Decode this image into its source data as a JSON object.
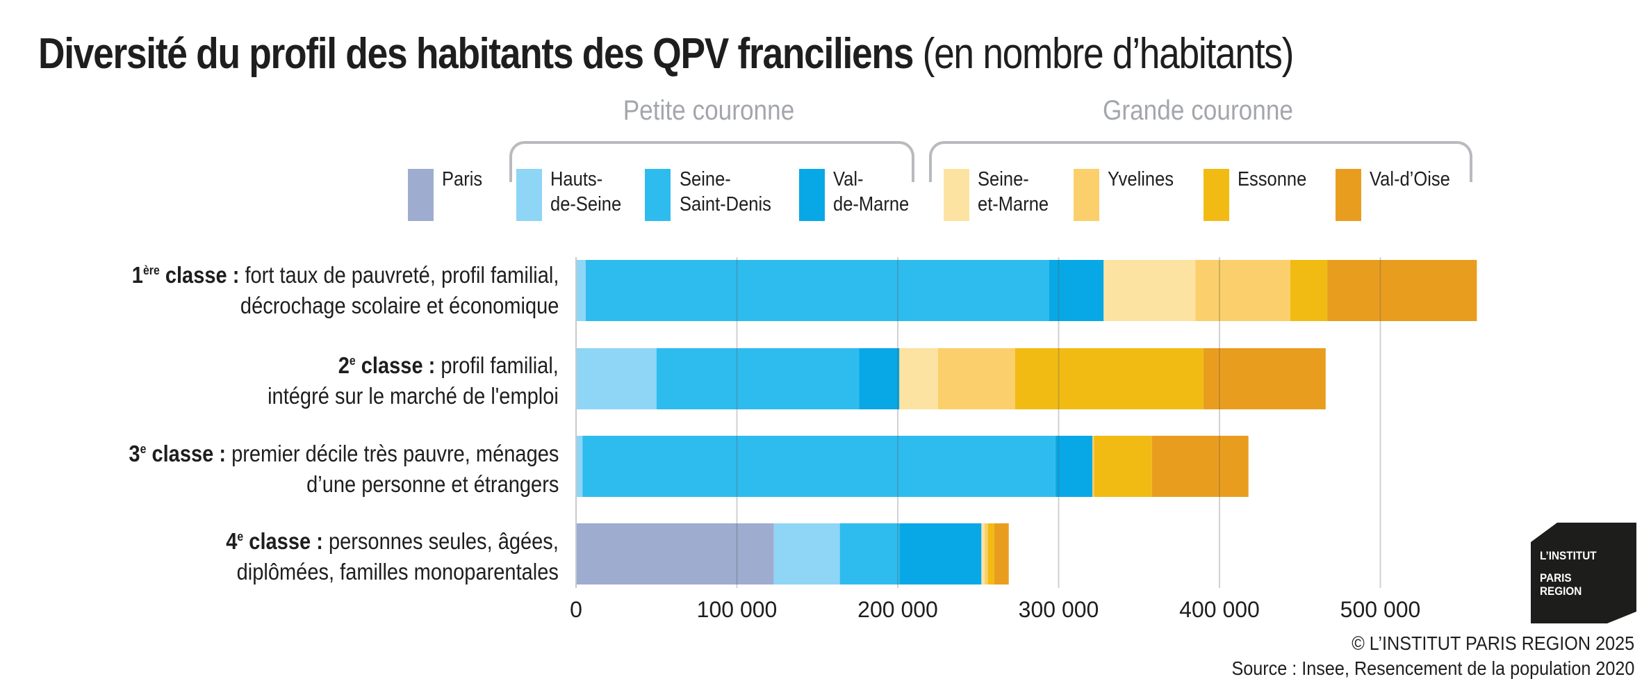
{
  "title": {
    "bold": "Diversité du profil des habitants des QPV franciliens",
    "normal": "(en nombre d’habitants)"
  },
  "groups": {
    "petite": "Petite couronne",
    "grande": "Grande couronne"
  },
  "chart_data": {
    "type": "bar",
    "orientation": "horizontal",
    "stacked": true,
    "title": "Diversité du profil des habitants des QPV franciliens (en nombre d’habitants)",
    "xlabel": "",
    "ylabel": "",
    "xlim": [
      0,
      560000
    ],
    "xticks": [
      0,
      100000,
      200000,
      300000,
      400000,
      500000
    ],
    "xtick_labels": [
      "0",
      "100 000",
      "200 000",
      "300 000",
      "400 000",
      "500 000"
    ],
    "grid": true,
    "legend_position": "top",
    "categories": [
      {
        "num": "1",
        "sup": "ère",
        "suffix": " classe :",
        "line1": " fort taux de pauvreté, profil familial,",
        "line2": "décrochage scolaire et économique"
      },
      {
        "num": "2",
        "sup": "e",
        "suffix": " classe :",
        "line1": " profil familial,",
        "line2": "intégré sur le marché de l'emploi"
      },
      {
        "num": "3",
        "sup": "e",
        "suffix": " classe :",
        "line1": " premier décile très pauvre, ménages",
        "line2": "d’une personne et étrangers"
      },
      {
        "num": "4",
        "sup": "e",
        "suffix": " classe :",
        "line1": " personnes seules, âgées,",
        "line2": "diplômées, familles monoparentales"
      }
    ],
    "series": [
      {
        "name": "Paris",
        "legend": "Paris",
        "color": "#9eacd0",
        "values": [
          0,
          0,
          0,
          123000
        ]
      },
      {
        "name": "Hauts-de-Seine",
        "legend": "Hauts-\nde-Seine",
        "color": "#8ed5f6",
        "values": [
          6000,
          50000,
          4000,
          41000
        ]
      },
      {
        "name": "Seine-Saint-Denis",
        "legend": "Seine-\nSaint-Denis",
        "color": "#2ebcef",
        "values": [
          288000,
          126000,
          294000,
          37000
        ]
      },
      {
        "name": "Val-de-Marne",
        "legend": "Val-\nde-Marne",
        "color": "#08a8e6",
        "values": [
          34000,
          25000,
          23000,
          51000
        ]
      },
      {
        "name": "Seine-et-Marne",
        "legend": "Seine-\net-Marne",
        "color": "#fde3a2",
        "values": [
          57000,
          24000,
          0,
          2000
        ]
      },
      {
        "name": "Yvelines",
        "legend": "Yvelines",
        "color": "#fbcf6b",
        "values": [
          59000,
          48000,
          1000,
          2000
        ]
      },
      {
        "name": "Essonne",
        "legend": "Essonne",
        "color": "#f1bb14",
        "values": [
          23000,
          117000,
          36000,
          4000
        ]
      },
      {
        "name": "Val-d'Oise",
        "legend": "Val-d’Oise",
        "color": "#e99d1f",
        "values": [
          93000,
          76000,
          60000,
          9000
        ]
      }
    ]
  },
  "brand": {
    "line1": "L’INSTITUT",
    "line2": "PARIS",
    "line3": "REGION",
    "color": "#1d1d1b"
  },
  "credit": {
    "copyright": "© L’INSTITUT PARIS REGION 2025",
    "source": "Source : Insee, Resencement de la population 2020"
  }
}
